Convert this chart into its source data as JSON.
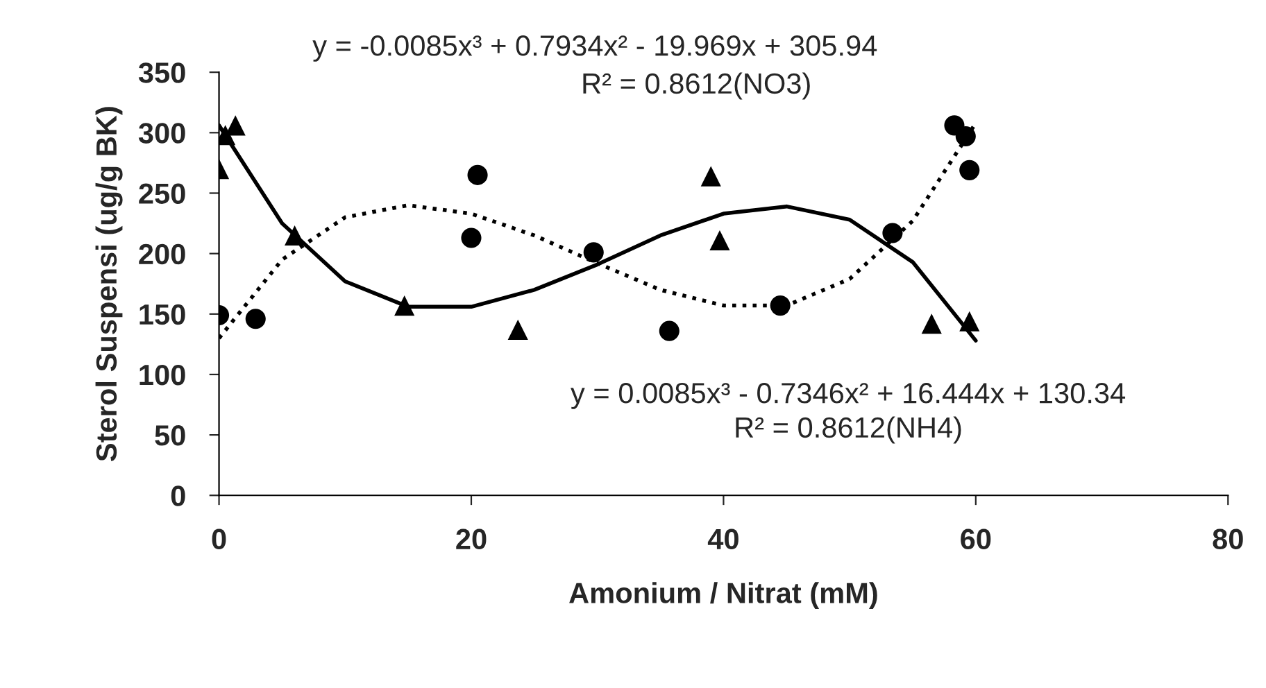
{
  "chart_data": {
    "type": "scatter",
    "xlabel": "Amonium / Nitrat (mM)",
    "ylabel": "Sterol Suspensi (ug/g BK)",
    "xlim": [
      0,
      80
    ],
    "ylim": [
      0,
      350
    ],
    "xticks": [
      0,
      20,
      40,
      60,
      80
    ],
    "yticks": [
      0,
      50,
      100,
      150,
      200,
      250,
      300,
      350
    ],
    "grid": false,
    "legend": false,
    "series": [
      {
        "marker": "triangle",
        "color": "#000000",
        "x": [
          0,
          0.5,
          1.3,
          6,
          14.7,
          23.7,
          39,
          39.7,
          56.5,
          59.5
        ],
        "values": [
          270,
          298,
          306,
          215,
          157,
          137,
          264,
          211,
          142,
          144
        ]
      },
      {
        "marker": "circle",
        "color": "#000000",
        "x": [
          0,
          2.9,
          20,
          20.5,
          29.7,
          35.7,
          44.5,
          53.4,
          58.3,
          59.2,
          59.5
        ],
        "values": [
          149,
          146,
          213,
          265,
          201,
          136,
          157,
          217,
          306,
          297,
          269
        ]
      },
      {
        "type": "line",
        "line_style": "solid",
        "marker": "none",
        "color": "#000000",
        "x": [
          0,
          5,
          10,
          15,
          20,
          25,
          30,
          35,
          40,
          45,
          50,
          55,
          60
        ],
        "values": [
          306,
          225,
          177,
          156,
          156,
          170,
          191,
          215,
          233,
          239,
          228,
          193,
          128
        ]
      },
      {
        "type": "line",
        "line_style": "dotted",
        "marker": "none",
        "color": "#000000",
        "x": [
          0,
          5,
          10,
          15,
          20,
          25,
          30,
          35,
          40,
          45,
          50,
          55,
          60
        ],
        "values": [
          130,
          195,
          230,
          240,
          233,
          215,
          192,
          170,
          157,
          157,
          179,
          227,
          308
        ]
      }
    ],
    "annotations": [
      "y = -0.0085x³ + 0.7934x² - 19.969x + 305.94",
      "R² = 0.8612(NO3)",
      "y = 0.0085x³ - 0.7346x² + 16.444x + 130.34",
      "R² = 0.8612(NH4)"
    ]
  }
}
